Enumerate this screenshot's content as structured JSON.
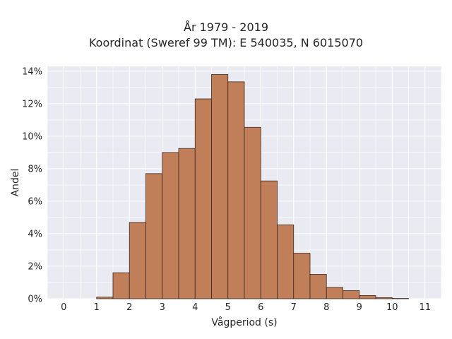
{
  "chart_data": {
    "type": "bar",
    "title_lines": [
      "År 1979 - 2019",
      "Koordinat (Sweref 99 TM): E 540035, N 6015070"
    ],
    "xlabel": "Vågperiod (s)",
    "ylabel": "Andel",
    "x_ticks": [
      "0",
      "1",
      "2",
      "3",
      "4",
      "5",
      "6",
      "7",
      "8",
      "9",
      "10",
      "11"
    ],
    "y_ticks": [
      "0%",
      "2%",
      "4%",
      "6%",
      "8%",
      "10%",
      "12%",
      "14%"
    ],
    "xlim": [
      -0.5,
      11.5
    ],
    "ylim": [
      0,
      14.3
    ],
    "grid": true,
    "bin_width": 0.5,
    "bins": [
      {
        "x0": 1.0,
        "x1": 1.5,
        "value": 0.1
      },
      {
        "x0": 1.5,
        "x1": 2.0,
        "value": 1.6
      },
      {
        "x0": 2.0,
        "x1": 2.5,
        "value": 4.7
      },
      {
        "x0": 2.5,
        "x1": 3.0,
        "value": 7.7
      },
      {
        "x0": 3.0,
        "x1": 3.5,
        "value": 9.0
      },
      {
        "x0": 3.5,
        "x1": 4.0,
        "value": 9.25
      },
      {
        "x0": 4.0,
        "x1": 4.5,
        "value": 12.3
      },
      {
        "x0": 4.5,
        "x1": 5.0,
        "value": 13.8
      },
      {
        "x0": 5.0,
        "x1": 5.5,
        "value": 13.35
      },
      {
        "x0": 5.5,
        "x1": 6.0,
        "value": 10.55
      },
      {
        "x0": 6.0,
        "x1": 6.5,
        "value": 7.25
      },
      {
        "x0": 6.5,
        "x1": 7.0,
        "value": 4.55
      },
      {
        "x0": 7.0,
        "x1": 7.5,
        "value": 2.8
      },
      {
        "x0": 7.5,
        "x1": 8.0,
        "value": 1.5
      },
      {
        "x0": 8.0,
        "x1": 8.5,
        "value": 0.7
      },
      {
        "x0": 8.5,
        "x1": 9.0,
        "value": 0.5
      },
      {
        "x0": 9.0,
        "x1": 9.5,
        "value": 0.2
      },
      {
        "x0": 9.5,
        "x1": 10.0,
        "value": 0.07
      },
      {
        "x0": 10.0,
        "x1": 10.5,
        "value": 0.02
      }
    ],
    "colors": {
      "bar_fill": "#c07f58",
      "bar_edge": "#3b2a20",
      "plot_background": "#eaeaf2",
      "grid": "#ffffff"
    }
  }
}
